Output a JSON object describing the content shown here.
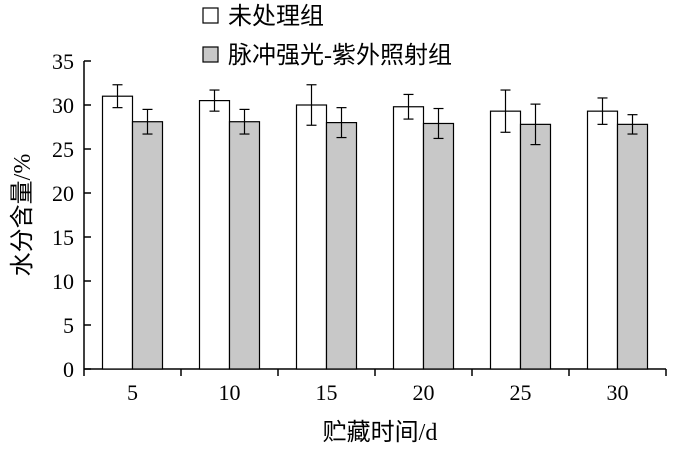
{
  "chart_data": {
    "type": "bar",
    "categories": [
      "5",
      "10",
      "15",
      "20",
      "25",
      "30"
    ],
    "series": [
      {
        "name": "未处理组",
        "values": [
          31.0,
          30.5,
          30.0,
          29.8,
          29.3,
          29.3
        ],
        "errors": [
          1.3,
          1.2,
          2.3,
          1.4,
          2.4,
          1.5
        ],
        "color": "#ffffff"
      },
      {
        "name": "脉冲强光-紫外照射组",
        "values": [
          28.1,
          28.1,
          28.0,
          27.9,
          27.8,
          27.8
        ],
        "errors": [
          1.4,
          1.4,
          1.7,
          1.7,
          2.3,
          1.1
        ],
        "color": "#c8c8c8"
      }
    ],
    "xlabel": "贮藏时间/d",
    "ylabel": "水分含量/%",
    "ylim": [
      0,
      35
    ],
    "yticks": [
      "0",
      "5",
      "10",
      "15",
      "20",
      "25",
      "30",
      "35"
    ],
    "grid": false,
    "legend_position": "top"
  }
}
